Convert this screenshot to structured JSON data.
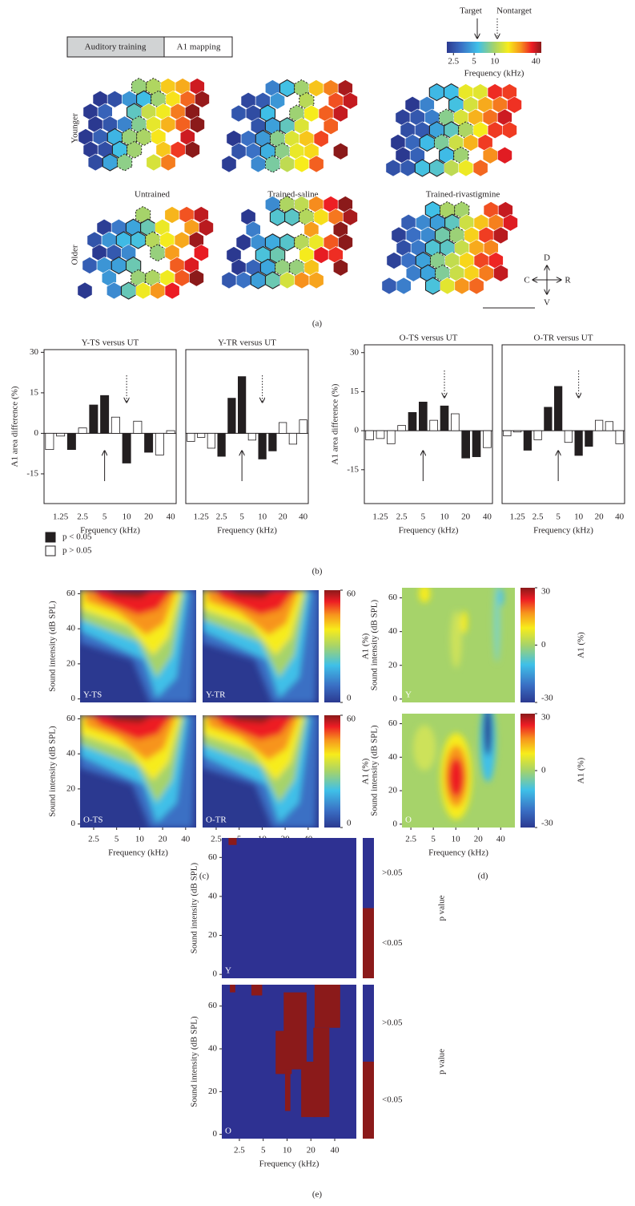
{
  "figure": {
    "boxes": [
      "Auditory training",
      "A1 mapping"
    ],
    "arrows": {
      "target": "Target",
      "nontarget": "Nontarget"
    },
    "colorbar": {
      "colormap": "jet",
      "lim": [
        2,
        48
      ],
      "ticks": [
        2.5,
        5,
        10,
        40
      ],
      "label": "Frequency (kHz)"
    },
    "rows": [
      "Younger",
      "Older"
    ],
    "columns": [
      "Untrained",
      "Trained-saline",
      "Trained-rivastigmine"
    ],
    "compass": {
      "dorsal": "D",
      "caudal": "C",
      "rostral": "R",
      "ventral": "V"
    },
    "panel_labels": [
      "(a)",
      "(b)",
      "(c)",
      "(d)",
      "(e)"
    ]
  },
  "chart_data": [
    {
      "type": "bar",
      "title": "Y-TS versus UT",
      "categories": [
        null,
        "1.25",
        null,
        "2.5",
        null,
        "5",
        null,
        "10",
        null,
        "20",
        null,
        "40"
      ],
      "series": [
        {
          "name": "p < 0.05",
          "color": "#231f20",
          "values": [
            null,
            null,
            -6,
            null,
            10.5,
            14,
            null,
            -11,
            null,
            -7,
            null,
            null
          ]
        },
        {
          "name": "p > 0.05",
          "color": "#ffffff",
          "values": [
            -6,
            -1,
            null,
            2,
            null,
            null,
            6,
            null,
            4.5,
            null,
            -8,
            1
          ]
        }
      ],
      "ylim": [
        -26,
        31
      ],
      "yticks": [
        -15,
        0,
        15,
        30
      ],
      "ylabel": "A1 area difference (%)",
      "xlabel": "Frequency (kHz)",
      "legend": true
    },
    {
      "type": "bar",
      "title": "Y-TR versus UT",
      "categories": [
        null,
        "1.25",
        null,
        "2.5",
        null,
        "5",
        null,
        "10",
        null,
        "20",
        null,
        "40"
      ],
      "series": [
        {
          "color": "#231f20",
          "values": [
            null,
            null,
            null,
            -8.5,
            13,
            21,
            null,
            -9.5,
            -6.5,
            null,
            null,
            null
          ]
        },
        {
          "color": "#ffffff",
          "values": [
            -3,
            -1.5,
            -5.5,
            null,
            null,
            null,
            -2.5,
            null,
            null,
            4,
            -4,
            5
          ]
        }
      ],
      "ylim": [
        -26,
        31
      ],
      "xlabel": "Frequency (kHz)",
      "legend": false
    },
    {
      "type": "bar",
      "title": "O-TS versus UT",
      "categories": [
        null,
        "1.25",
        null,
        "2.5",
        null,
        "5",
        null,
        "10",
        null,
        "20",
        null,
        "40"
      ],
      "series": [
        {
          "color": "#231f20",
          "values": [
            null,
            null,
            null,
            null,
            7,
            11,
            null,
            9.5,
            null,
            -10.5,
            -10,
            null
          ]
        },
        {
          "color": "#ffffff",
          "values": [
            -3.5,
            -3,
            -5,
            2,
            null,
            null,
            4,
            null,
            6.5,
            null,
            null,
            -6.5
          ]
        }
      ],
      "ylim": [
        -28,
        33
      ],
      "yticks": [
        -15,
        0,
        15,
        30
      ],
      "ylabel": "A1 area difference (%)",
      "xlabel": "Frequency (kHz)",
      "legend": false
    },
    {
      "type": "bar",
      "title": "O-TR versus UT",
      "categories": [
        null,
        "1.25",
        null,
        "2.5",
        null,
        "5",
        null,
        "10",
        null,
        "20",
        null,
        "40"
      ],
      "series": [
        {
          "color": "#231f20",
          "values": [
            null,
            null,
            -7.5,
            null,
            9,
            17,
            null,
            -9.5,
            -6,
            null,
            null,
            null
          ]
        },
        {
          "color": "#ffffff",
          "values": [
            -2,
            -0.5,
            null,
            -3.5,
            null,
            null,
            -4.5,
            null,
            null,
            4,
            3.5,
            -5
          ]
        }
      ],
      "ylim": [
        -28,
        33
      ],
      "xlabel": "Frequency (kHz)",
      "legend": false
    },
    {
      "type": "heatmap",
      "label": "Y-TS",
      "xscale": "log",
      "xlim": [
        1.66,
        55
      ],
      "ylim": [
        -2,
        62
      ],
      "yticks": [
        0,
        20,
        40,
        60
      ],
      "ylabel": "Sound intensity (dB SPL)"
    },
    {
      "type": "heatmap",
      "label": "Y-TR",
      "xscale": "log",
      "xlim": [
        1.66,
        55
      ],
      "ylim": [
        -2,
        62
      ],
      "colorbar": {
        "colormap": "jet",
        "lim": [
          0,
          60
        ],
        "ticks": [
          0,
          60
        ],
        "label": "A1 (%)"
      }
    },
    {
      "type": "heatmap",
      "label": "O-TS",
      "xscale": "log",
      "xlim": [
        1.66,
        55
      ],
      "ylim": [
        -2,
        62
      ],
      "xticks": [
        2.5,
        5,
        10,
        20,
        40
      ],
      "yticks": [
        0,
        20,
        40,
        60
      ],
      "xlabel": "Frequency (kHz)",
      "ylabel": "Sound intensity (dB SPL)"
    },
    {
      "type": "heatmap",
      "label": "O-TR",
      "xscale": "log",
      "xlim": [
        1.66,
        55
      ],
      "ylim": [
        -2,
        62
      ],
      "xticks": [
        2.5,
        5,
        10,
        20,
        40
      ],
      "xlabel": "Frequency (kHz)",
      "colorbar": {
        "colormap": "jet",
        "lim": [
          0,
          60
        ],
        "ticks": [
          0,
          60
        ],
        "label": "A1 (%)"
      }
    },
    {
      "type": "heatmap",
      "label": "Y",
      "xscale": "log",
      "xlim": [
        1.9,
        62
      ],
      "ylim": [
        -2,
        66
      ],
      "yticks": [
        0,
        20,
        40,
        60
      ],
      "ylabel": "Sound intensity (dB SPL)",
      "colorbar": {
        "colormap": "jet",
        "lim": [
          -30,
          30
        ],
        "ticks": [
          -30,
          0,
          30
        ],
        "label": "A1 (%)"
      }
    },
    {
      "type": "heatmap",
      "label": "O",
      "xscale": "log",
      "xlim": [
        1.9,
        62
      ],
      "ylim": [
        -2,
        66
      ],
      "xticks": [
        2.5,
        5,
        10,
        20,
        40
      ],
      "yticks": [
        0,
        20,
        40,
        60
      ],
      "xlabel": "Frequency (kHz)",
      "ylabel": "Sound intensity (dB SPL)",
      "colorbar": {
        "colormap": "jet",
        "lim": [
          -30,
          30
        ],
        "ticks": [
          -30,
          0,
          30
        ],
        "label": "A1 (%)"
      }
    },
    {
      "type": "heatmap",
      "label": "Y",
      "xscale": "log",
      "xlim": [
        1.5,
        75
      ],
      "ylim": [
        -2,
        70
      ],
      "yticks": [
        0,
        20,
        40,
        60
      ],
      "ylabel": "Sound intensity (dB SPL)",
      "colorbar": {
        "categories": [
          ">0.05",
          "<0.05"
        ],
        "colors": [
          "#2e3192",
          "#8b1a1a"
        ],
        "label": "p value"
      }
    },
    {
      "type": "heatmap",
      "label": "O",
      "xscale": "log",
      "xlim": [
        1.5,
        75
      ],
      "ylim": [
        -2,
        70
      ],
      "xticks": [
        2.5,
        5,
        10,
        20,
        40
      ],
      "yticks": [
        0,
        20,
        40,
        60
      ],
      "xlabel": "Frequency (kHz)",
      "ylabel": "Sound intensity (dB SPL)",
      "colorbar": {
        "categories": [
          ">0.05",
          "<0.05"
        ],
        "colors": [
          "#2e3192",
          "#8b1a1a"
        ],
        "label": "p value"
      }
    }
  ]
}
